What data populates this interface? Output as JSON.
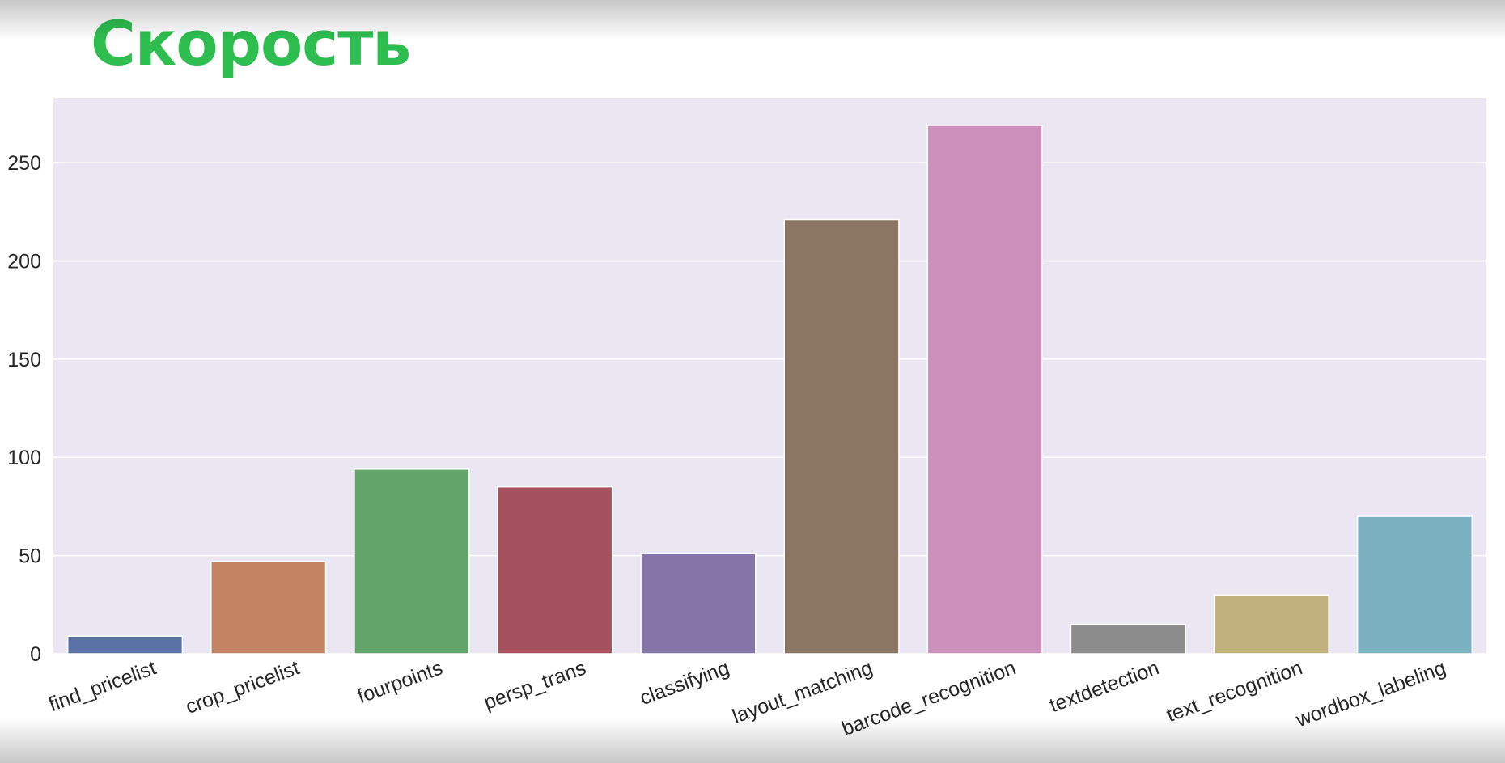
{
  "page": {
    "title": "Скорость"
  },
  "colors": {
    "title": "#2dbe4f",
    "plot_background": "#eae6f2",
    "grid": "#ffffff",
    "text": "#262626"
  },
  "chart_data": {
    "type": "bar",
    "title": "",
    "xlabel": "",
    "ylabel": "",
    "categories": [
      "find_pricelist",
      "crop_pricelist",
      "fourpoints",
      "persp_trans",
      "classifying",
      "layout_matching",
      "barcode_recognition",
      "textdetection",
      "text_recognition",
      "wordbox_labeling"
    ],
    "values": [
      9,
      47,
      94,
      85,
      51,
      221,
      269,
      15,
      30,
      70
    ],
    "colors": [
      "#5a72a6",
      "#c28462",
      "#63a46b",
      "#a6525e",
      "#8474a8",
      "#8a7662",
      "#cd8fbc",
      "#8c8c8c",
      "#c1b27d",
      "#7cb1c2"
    ],
    "ylim": [
      0,
      283
    ],
    "yticks": [
      0,
      50,
      100,
      150,
      200,
      250
    ],
    "grid": true,
    "legend": "none"
  }
}
